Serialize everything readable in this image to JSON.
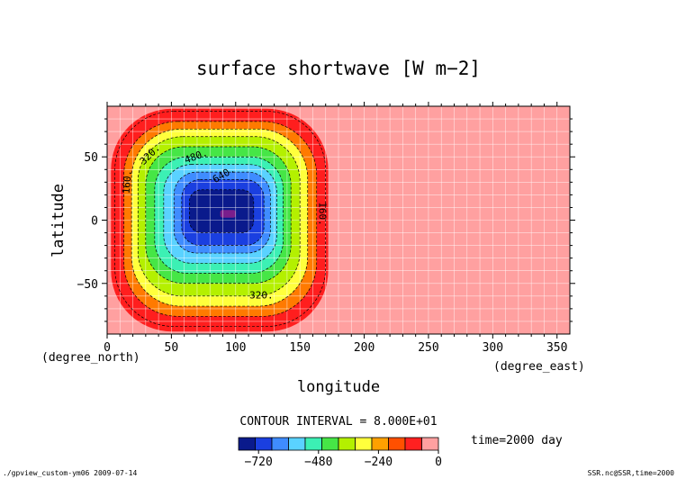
{
  "chart_data": {
    "type": "heatmap",
    "title": "surface shortwave [W m−2]",
    "xlabel": "longitude",
    "ylabel": "latitude",
    "x_unit": "(degree_east)",
    "y_unit": "(degree_north)",
    "xlim": [
      0,
      360
    ],
    "ylim": [
      -90,
      90
    ],
    "x_ticks": [
      "0",
      "50",
      "100",
      "150",
      "200",
      "250",
      "300",
      "350"
    ],
    "y_ticks": [
      "50",
      "0",
      "−50"
    ],
    "grid": true,
    "contour_interval_text": "CONTOUR INTERVAL = 8.000E+01",
    "time_text": "time=2000 day",
    "contour_labels": [
      "160.",
      "320.",
      "480.",
      "640.",
      "160.",
      "320."
    ],
    "colorbar": {
      "ticks": [
        "−720",
        "−480",
        "−240",
        "0"
      ],
      "range": [
        -800,
        0
      ],
      "interval": 80,
      "colors": [
        "#0a1a8c",
        "#1a3fe0",
        "#3f8cff",
        "#5ad2ff",
        "#3cf0b4",
        "#46e646",
        "#b4f000",
        "#ffff3c",
        "#ffa000",
        "#ff5000",
        "#ff2020",
        "#ffa0a0"
      ]
    },
    "field": {
      "description_values": "shortwave field: 0 outside, forced region between ~5E and ~170E, minimum near (95E, 5N) around -760",
      "region_lon": [
        5,
        170
      ],
      "region_lat": [
        -85,
        88
      ],
      "minimum": -760,
      "minimum_location": [
        95,
        5
      ]
    }
  },
  "footer": {
    "left": "./gpview_custom-ym06  2009-07-14",
    "right": "SSR.nc@SSR,time=2000"
  }
}
